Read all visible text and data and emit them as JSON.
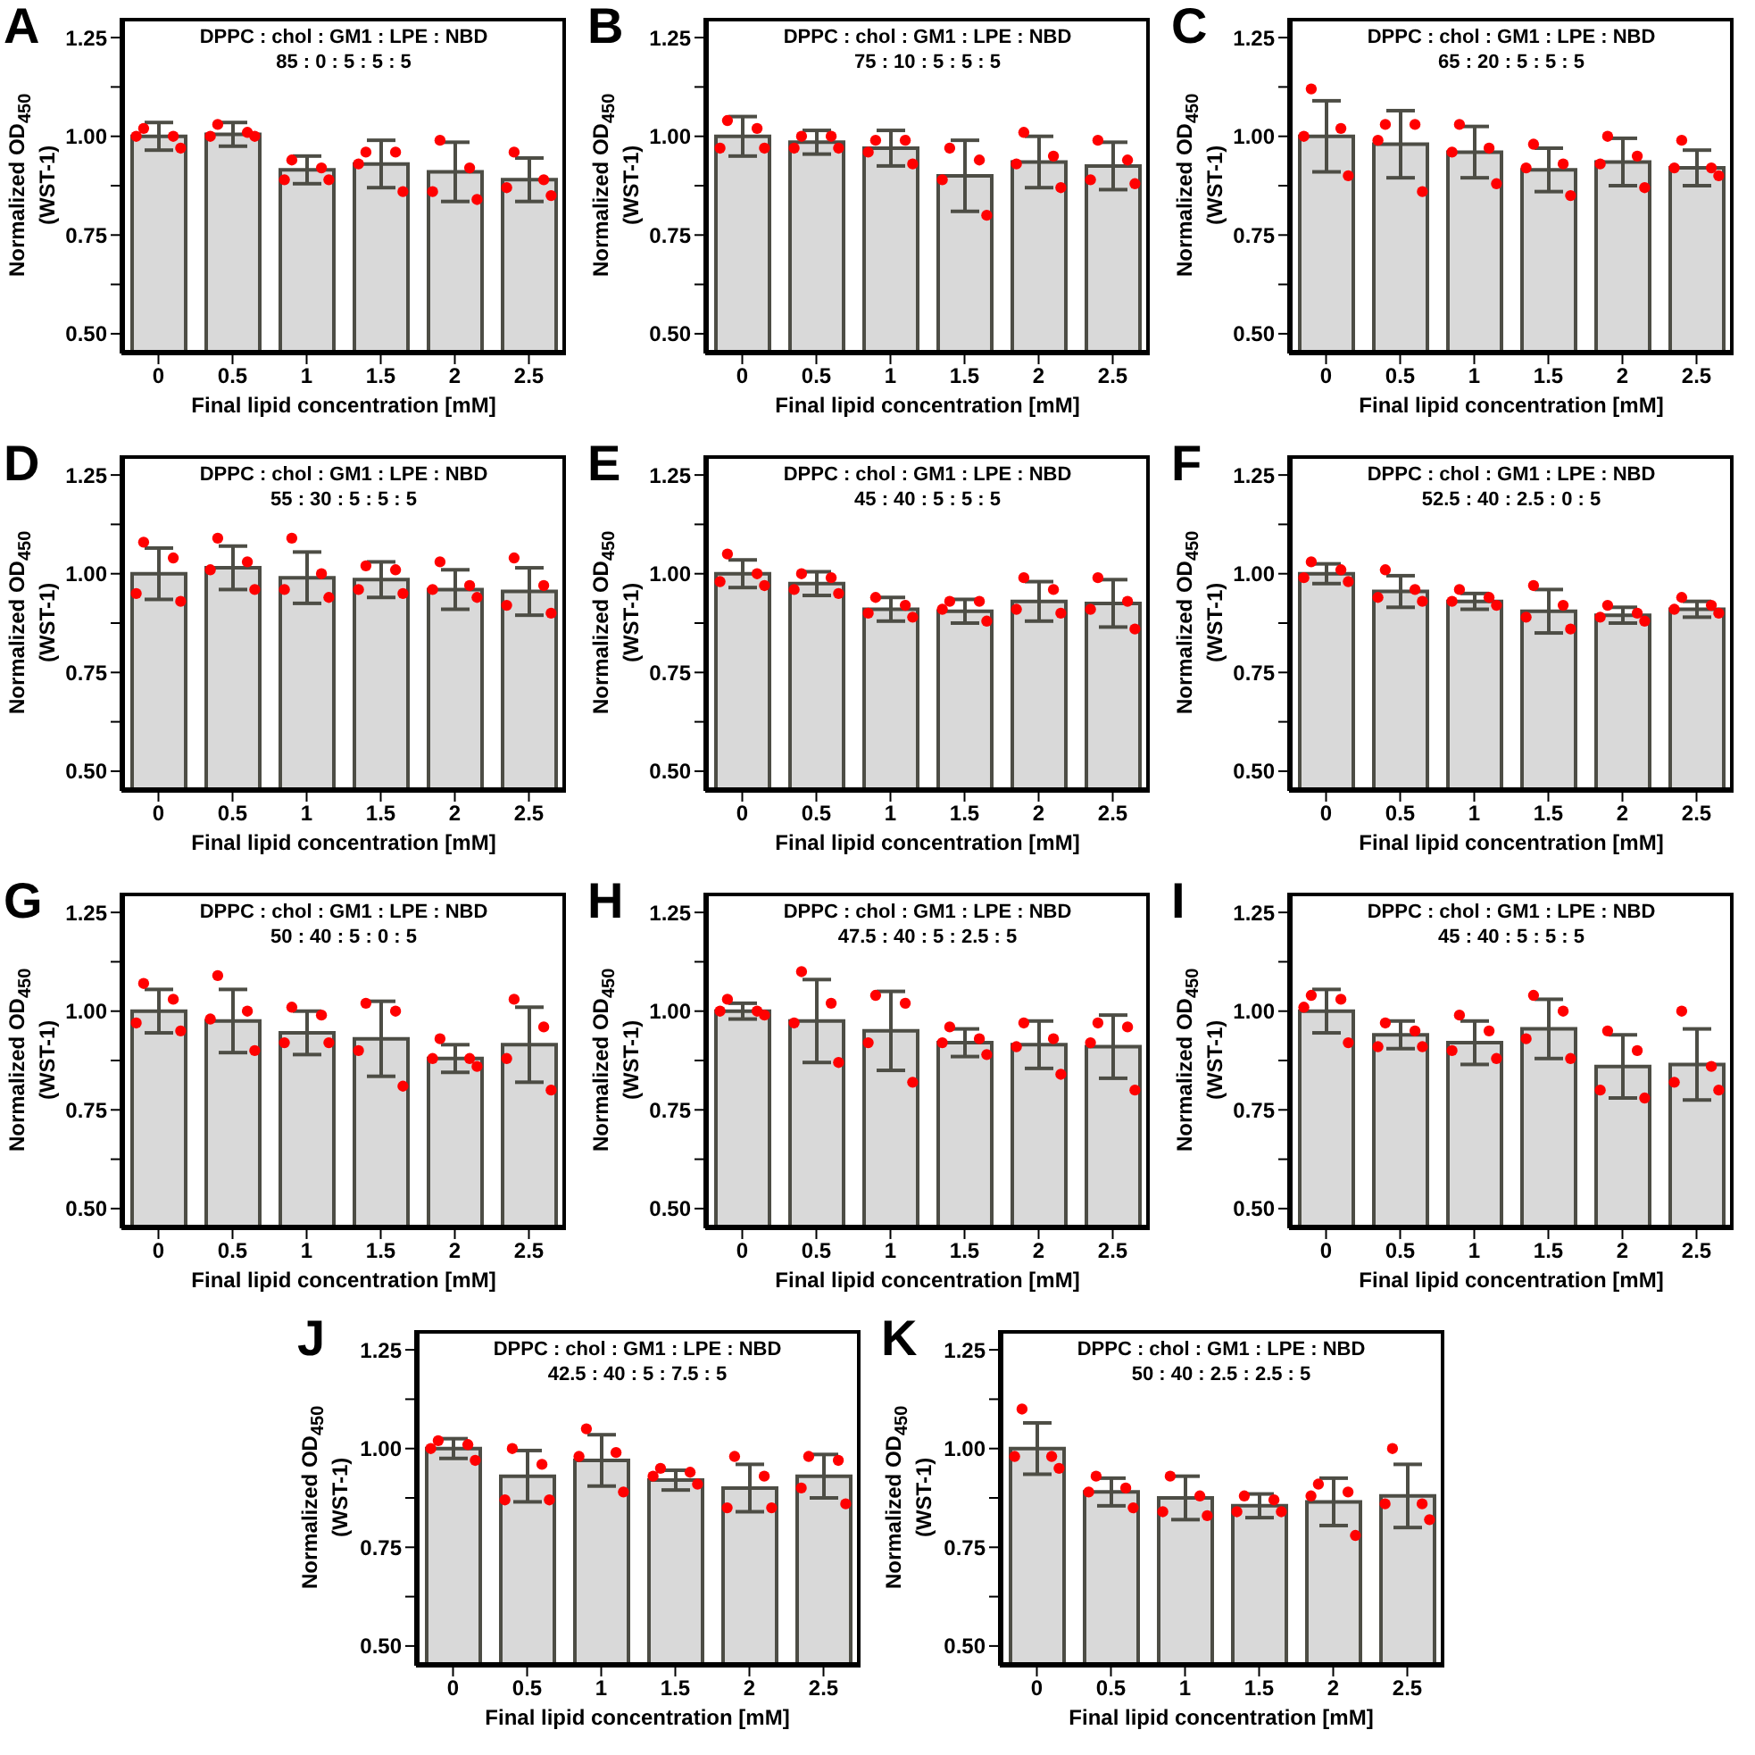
{
  "chart_data": [
    {
      "type": "bar",
      "annotations": [
        "A"
      ],
      "title": "DPPC : chol : GM1 : LPE : NBD",
      "subtitle": "85 : 0 : 5 : 5 : 5",
      "xlabel": "Final lipid concentration [mM]",
      "ylabel": "Normalized OD$_{450}$\n(WST-1)",
      "categories": [
        "0",
        "0.5",
        "1",
        "1.5",
        "2",
        "2.5"
      ],
      "ylim": [
        0.45,
        1.3
      ],
      "yticks": [
        {
          "value": 0.5,
          "label": "0.50"
        },
        {
          "value": 0.625,
          "label": null
        },
        {
          "value": 0.75,
          "label": "0.75"
        },
        {
          "value": 0.875,
          "label": null
        },
        {
          "value": 1,
          "label": "1.00"
        },
        {
          "value": 1.125,
          "label": null
        },
        {
          "value": 1.25,
          "label": "1.25"
        }
      ],
      "marker": "circle",
      "series": [
        {
          "type": "bar",
          "color": "#d9d9d9",
          "values": [
            1.0,
            1.005,
            0.915,
            0.93,
            0.91,
            0.89
          ],
          "errors": [
            0.035,
            0.03,
            0.035,
            0.06,
            0.075,
            0.055
          ]
        },
        {
          "type": "scatter",
          "color": "#ff0000",
          "x": [
            "0",
            "0",
            "0",
            "0",
            "0.5",
            "0.5",
            "0.5",
            "0.5",
            "1",
            "1",
            "1",
            "1",
            "1.5",
            "1.5",
            "1.5",
            "1.5",
            "2",
            "2",
            "2",
            "2",
            "2.5",
            "2.5",
            "2.5",
            "2.5"
          ],
          "values": [
            1.02,
            1.0,
            1.0,
            0.97,
            1.03,
            1.01,
            1.0,
            1.0,
            0.94,
            0.92,
            0.89,
            0.89,
            0.96,
            0.96,
            0.93,
            0.86,
            0.99,
            0.92,
            0.86,
            0.84,
            0.96,
            0.89,
            0.87,
            0.85
          ]
        }
      ]
    },
    {
      "type": "bar",
      "annotations": [
        "B"
      ],
      "title": "DPPC : chol : GM1 : LPE : NBD",
      "subtitle": "75 : 10 : 5 : 5 : 5",
      "xlabel": "Final lipid concentration [mM]",
      "ylabel": "Normalized OD$_{450}$\n(WST-1)",
      "categories": [
        "0",
        "0.5",
        "1",
        "1.5",
        "2",
        "2.5"
      ],
      "ylim": [
        0.45,
        1.3
      ],
      "yticks": [
        {
          "value": 0.5,
          "label": "0.50"
        },
        {
          "value": 0.625,
          "label": null
        },
        {
          "value": 0.75,
          "label": "0.75"
        },
        {
          "value": 0.875,
          "label": null
        },
        {
          "value": 1,
          "label": "1.00"
        },
        {
          "value": 1.125,
          "label": null
        },
        {
          "value": 1.25,
          "label": "1.25"
        }
      ],
      "marker": "circle",
      "series": [
        {
          "type": "bar",
          "color": "#d9d9d9",
          "values": [
            1.0,
            0.985,
            0.97,
            0.9,
            0.935,
            0.925
          ],
          "errors": [
            0.05,
            0.03,
            0.045,
            0.09,
            0.065,
            0.06
          ]
        },
        {
          "type": "scatter",
          "color": "#ff0000",
          "x": [
            "0",
            "0",
            "0",
            "0",
            "0.5",
            "0.5",
            "0.5",
            "0.5",
            "1",
            "1",
            "1",
            "1",
            "1.5",
            "1.5",
            "1.5",
            "1.5",
            "2",
            "2",
            "2",
            "2",
            "2.5",
            "2.5",
            "2.5",
            "2.5"
          ],
          "values": [
            1.04,
            1.02,
            0.97,
            0.97,
            1.0,
            1.0,
            0.97,
            0.97,
            0.99,
            0.99,
            0.96,
            0.93,
            0.97,
            0.94,
            0.89,
            0.8,
            1.01,
            0.95,
            0.93,
            0.87,
            0.99,
            0.94,
            0.89,
            0.88
          ]
        }
      ]
    },
    {
      "type": "bar",
      "annotations": [
        "C"
      ],
      "title": "DPPC : chol : GM1 : LPE : NBD",
      "subtitle": "65 : 20 : 5 : 5 : 5",
      "xlabel": "Final lipid concentration [mM]",
      "ylabel": "Normalized OD$_{450}$\n(WST-1)",
      "categories": [
        "0",
        "0.5",
        "1",
        "1.5",
        "2",
        "2.5"
      ],
      "ylim": [
        0.45,
        1.3
      ],
      "yticks": [
        {
          "value": 0.5,
          "label": "0.50"
        },
        {
          "value": 0.625,
          "label": null
        },
        {
          "value": 0.75,
          "label": "0.75"
        },
        {
          "value": 0.875,
          "label": null
        },
        {
          "value": 1,
          "label": "1.00"
        },
        {
          "value": 1.125,
          "label": null
        },
        {
          "value": 1.25,
          "label": "1.25"
        }
      ],
      "marker": "circle",
      "series": [
        {
          "type": "bar",
          "color": "#d9d9d9",
          "values": [
            1.0,
            0.98,
            0.96,
            0.915,
            0.935,
            0.92
          ],
          "errors": [
            0.09,
            0.085,
            0.065,
            0.055,
            0.06,
            0.045
          ]
        },
        {
          "type": "scatter",
          "color": "#ff0000",
          "x": [
            "0",
            "0",
            "0",
            "0",
            "0.5",
            "0.5",
            "0.5",
            "0.5",
            "1",
            "1",
            "1",
            "1",
            "1.5",
            "1.5",
            "1.5",
            "1.5",
            "2",
            "2",
            "2",
            "2",
            "2.5",
            "2.5",
            "2.5",
            "2.5"
          ],
          "values": [
            1.12,
            1.02,
            1.0,
            0.9,
            1.03,
            1.03,
            0.99,
            0.86,
            1.03,
            0.97,
            0.96,
            0.88,
            0.98,
            0.93,
            0.92,
            0.85,
            1.0,
            0.95,
            0.93,
            0.87,
            0.99,
            0.92,
            0.92,
            0.9
          ]
        }
      ]
    },
    {
      "type": "bar",
      "annotations": [
        "D"
      ],
      "title": "DPPC : chol : GM1 : LPE : NBD",
      "subtitle": "55 : 30 : 5 : 5 : 5",
      "xlabel": "Final lipid concentration [mM]",
      "ylabel": "Normalized OD$_{450}$\n(WST-1)",
      "categories": [
        "0",
        "0.5",
        "1",
        "1.5",
        "2",
        "2.5"
      ],
      "ylim": [
        0.45,
        1.3
      ],
      "yticks": [
        {
          "value": 0.5,
          "label": "0.50"
        },
        {
          "value": 0.625,
          "label": null
        },
        {
          "value": 0.75,
          "label": "0.75"
        },
        {
          "value": 0.875,
          "label": null
        },
        {
          "value": 1,
          "label": "1.00"
        },
        {
          "value": 1.125,
          "label": null
        },
        {
          "value": 1.25,
          "label": "1.25"
        }
      ],
      "marker": "circle",
      "series": [
        {
          "type": "bar",
          "color": "#d9d9d9",
          "values": [
            1.0,
            1.015,
            0.99,
            0.985,
            0.96,
            0.955
          ],
          "errors": [
            0.065,
            0.055,
            0.065,
            0.045,
            0.05,
            0.06
          ]
        },
        {
          "type": "scatter",
          "color": "#ff0000",
          "x": [
            "0",
            "0",
            "0",
            "0",
            "0.5",
            "0.5",
            "0.5",
            "0.5",
            "1",
            "1",
            "1",
            "1",
            "1.5",
            "1.5",
            "1.5",
            "1.5",
            "2",
            "2",
            "2",
            "2",
            "2.5",
            "2.5",
            "2.5",
            "2.5"
          ],
          "values": [
            1.08,
            1.04,
            0.95,
            0.93,
            1.09,
            1.03,
            1.01,
            0.96,
            1.09,
            1.0,
            0.96,
            0.94,
            1.02,
            1.01,
            0.96,
            0.95,
            1.03,
            0.97,
            0.96,
            0.94,
            1.04,
            0.97,
            0.92,
            0.9
          ]
        }
      ]
    },
    {
      "type": "bar",
      "annotations": [
        "E"
      ],
      "title": "DPPC : chol : GM1 : LPE : NBD",
      "subtitle": "45 : 40 : 5 : 5 : 5",
      "xlabel": "Final lipid concentration [mM]",
      "ylabel": "Normalized OD$_{450}$\n(WST-1)",
      "categories": [
        "0",
        "0.5",
        "1",
        "1.5",
        "2",
        "2.5"
      ],
      "ylim": [
        0.45,
        1.3
      ],
      "yticks": [
        {
          "value": 0.5,
          "label": "0.50"
        },
        {
          "value": 0.625,
          "label": null
        },
        {
          "value": 0.75,
          "label": "0.75"
        },
        {
          "value": 0.875,
          "label": null
        },
        {
          "value": 1,
          "label": "1.00"
        },
        {
          "value": 1.125,
          "label": null
        },
        {
          "value": 1.25,
          "label": "1.25"
        }
      ],
      "marker": "circle",
      "series": [
        {
          "type": "bar",
          "color": "#d9d9d9",
          "values": [
            1.0,
            0.975,
            0.91,
            0.905,
            0.93,
            0.925
          ],
          "errors": [
            0.035,
            0.03,
            0.03,
            0.03,
            0.05,
            0.06
          ]
        },
        {
          "type": "scatter",
          "color": "#ff0000",
          "x": [
            "0",
            "0",
            "0",
            "0",
            "0.5",
            "0.5",
            "0.5",
            "0.5",
            "1",
            "1",
            "1",
            "1",
            "1.5",
            "1.5",
            "1.5",
            "1.5",
            "2",
            "2",
            "2",
            "2",
            "2.5",
            "2.5",
            "2.5",
            "2.5"
          ],
          "values": [
            1.05,
            1.0,
            0.98,
            0.97,
            1.0,
            0.99,
            0.96,
            0.95,
            0.94,
            0.92,
            0.9,
            0.89,
            0.93,
            0.93,
            0.91,
            0.88,
            0.99,
            0.96,
            0.91,
            0.9,
            0.99,
            0.93,
            0.91,
            0.86
          ]
        }
      ]
    },
    {
      "type": "bar",
      "annotations": [
        "F"
      ],
      "title": "DPPC : chol : GM1 : LPE : NBD",
      "subtitle": "52.5 : 40 : 2.5 : 0 : 5",
      "xlabel": "Final lipid concentration [mM]",
      "ylabel": "Normalized OD$_{450}$\n(WST-1)",
      "categories": [
        "0",
        "0.5",
        "1",
        "1.5",
        "2",
        "2.5"
      ],
      "ylim": [
        0.45,
        1.3
      ],
      "yticks": [
        {
          "value": 0.5,
          "label": "0.50"
        },
        {
          "value": 0.625,
          "label": null
        },
        {
          "value": 0.75,
          "label": "0.75"
        },
        {
          "value": 0.875,
          "label": null
        },
        {
          "value": 1,
          "label": "1.00"
        },
        {
          "value": 1.125,
          "label": null
        },
        {
          "value": 1.25,
          "label": "1.25"
        }
      ],
      "marker": "circle",
      "series": [
        {
          "type": "bar",
          "color": "#d9d9d9",
          "values": [
            1.0,
            0.955,
            0.93,
            0.905,
            0.895,
            0.91
          ],
          "errors": [
            0.025,
            0.04,
            0.02,
            0.055,
            0.02,
            0.02
          ]
        },
        {
          "type": "scatter",
          "color": "#ff0000",
          "x": [
            "0",
            "0",
            "0",
            "0",
            "0.5",
            "0.5",
            "0.5",
            "0.5",
            "1",
            "1",
            "1",
            "1",
            "1.5",
            "1.5",
            "1.5",
            "1.5",
            "2",
            "2",
            "2",
            "2",
            "2.5",
            "2.5",
            "2.5",
            "2.5"
          ],
          "values": [
            1.03,
            1.01,
            0.99,
            0.98,
            1.01,
            0.96,
            0.94,
            0.93,
            0.96,
            0.94,
            0.93,
            0.92,
            0.97,
            0.92,
            0.89,
            0.86,
            0.92,
            0.9,
            0.89,
            0.88,
            0.94,
            0.92,
            0.91,
            0.9
          ]
        }
      ]
    },
    {
      "type": "bar",
      "annotations": [
        "G"
      ],
      "title": "DPPC : chol : GM1 : LPE : NBD",
      "subtitle": "50 : 40 : 5 : 0 : 5",
      "xlabel": "Final lipid concentration [mM]",
      "ylabel": "Normalized OD$_{450}$\n(WST-1)",
      "categories": [
        "0",
        "0.5",
        "1",
        "1.5",
        "2",
        "2.5"
      ],
      "ylim": [
        0.45,
        1.3
      ],
      "yticks": [
        {
          "value": 0.5,
          "label": "0.50"
        },
        {
          "value": 0.625,
          "label": null
        },
        {
          "value": 0.75,
          "label": "0.75"
        },
        {
          "value": 0.875,
          "label": null
        },
        {
          "value": 1,
          "label": "1.00"
        },
        {
          "value": 1.125,
          "label": null
        },
        {
          "value": 1.25,
          "label": "1.25"
        }
      ],
      "marker": "circle",
      "series": [
        {
          "type": "bar",
          "color": "#d9d9d9",
          "values": [
            1.0,
            0.975,
            0.945,
            0.93,
            0.88,
            0.915
          ],
          "errors": [
            0.055,
            0.08,
            0.055,
            0.095,
            0.035,
            0.095
          ]
        },
        {
          "type": "scatter",
          "color": "#ff0000",
          "x": [
            "0",
            "0",
            "0",
            "0",
            "0.5",
            "0.5",
            "0.5",
            "0.5",
            "1",
            "1",
            "1",
            "1",
            "1.5",
            "1.5",
            "1.5",
            "1.5",
            "2",
            "2",
            "2",
            "2",
            "2.5",
            "2.5",
            "2.5",
            "2.5"
          ],
          "values": [
            1.07,
            1.03,
            0.97,
            0.95,
            1.09,
            1.0,
            0.98,
            0.9,
            1.01,
            0.99,
            0.92,
            0.92,
            1.02,
            1.0,
            0.9,
            0.81,
            0.93,
            0.88,
            0.88,
            0.86,
            1.03,
            0.96,
            0.88,
            0.8
          ]
        }
      ]
    },
    {
      "type": "bar",
      "annotations": [
        "H"
      ],
      "title": "DPPC : chol : GM1 : LPE : NBD",
      "subtitle": "47.5 : 40 : 5 : 2.5 : 5",
      "xlabel": "Final lipid concentration [mM]",
      "ylabel": "Normalized OD$_{450}$\n(WST-1)",
      "categories": [
        "0",
        "0.5",
        "1",
        "1.5",
        "2",
        "2.5"
      ],
      "ylim": [
        0.45,
        1.3
      ],
      "yticks": [
        {
          "value": 0.5,
          "label": "0.50"
        },
        {
          "value": 0.625,
          "label": null
        },
        {
          "value": 0.75,
          "label": "0.75"
        },
        {
          "value": 0.875,
          "label": null
        },
        {
          "value": 1,
          "label": "1.00"
        },
        {
          "value": 1.125,
          "label": null
        },
        {
          "value": 1.25,
          "label": "1.25"
        }
      ],
      "marker": "circle",
      "series": [
        {
          "type": "bar",
          "color": "#d9d9d9",
          "values": [
            1.0,
            0.975,
            0.95,
            0.92,
            0.915,
            0.91
          ],
          "errors": [
            0.02,
            0.105,
            0.1,
            0.035,
            0.06,
            0.08
          ]
        },
        {
          "type": "scatter",
          "color": "#ff0000",
          "x": [
            "0",
            "0",
            "0",
            "0",
            "0.5",
            "0.5",
            "0.5",
            "0.5",
            "1",
            "1",
            "1",
            "1",
            "1.5",
            "1.5",
            "1.5",
            "1.5",
            "2",
            "2",
            "2",
            "2",
            "2.5",
            "2.5",
            "2.5",
            "2.5"
          ],
          "values": [
            1.03,
            1.0,
            1.0,
            0.99,
            1.1,
            1.02,
            0.97,
            0.87,
            1.04,
            1.02,
            0.92,
            0.82,
            0.96,
            0.93,
            0.92,
            0.89,
            0.97,
            0.93,
            0.91,
            0.84,
            0.97,
            0.96,
            0.92,
            0.8
          ]
        }
      ]
    },
    {
      "type": "bar",
      "annotations": [
        "I"
      ],
      "title": "DPPC : chol : GM1 : LPE : NBD",
      "subtitle": "45 : 40 : 5 : 5 : 5",
      "xlabel": "Final lipid concentration [mM]",
      "ylabel": "Normalized OD$_{450}$\n(WST-1)",
      "categories": [
        "0",
        "0.5",
        "1",
        "1.5",
        "2",
        "2.5"
      ],
      "ylim": [
        0.45,
        1.3
      ],
      "yticks": [
        {
          "value": 0.5,
          "label": "0.50"
        },
        {
          "value": 0.625,
          "label": null
        },
        {
          "value": 0.75,
          "label": "0.75"
        },
        {
          "value": 0.875,
          "label": null
        },
        {
          "value": 1,
          "label": "1.00"
        },
        {
          "value": 1.125,
          "label": null
        },
        {
          "value": 1.25,
          "label": "1.25"
        }
      ],
      "marker": "circle",
      "series": [
        {
          "type": "bar",
          "color": "#d9d9d9",
          "values": [
            1.0,
            0.94,
            0.92,
            0.955,
            0.86,
            0.865
          ],
          "errors": [
            0.055,
            0.035,
            0.055,
            0.075,
            0.08,
            0.09
          ]
        },
        {
          "type": "scatter",
          "color": "#ff0000",
          "x": [
            "0",
            "0",
            "0",
            "0",
            "0.5",
            "0.5",
            "0.5",
            "0.5",
            "1",
            "1",
            "1",
            "1",
            "1.5",
            "1.5",
            "1.5",
            "1.5",
            "2",
            "2",
            "2",
            "2",
            "2.5",
            "2.5",
            "2.5",
            "2.5"
          ],
          "values": [
            1.04,
            1.03,
            1.01,
            0.92,
            0.97,
            0.95,
            0.91,
            0.91,
            0.99,
            0.95,
            0.9,
            0.88,
            1.04,
            1.0,
            0.93,
            0.88,
            0.95,
            0.9,
            0.8,
            0.78,
            1.0,
            0.86,
            0.82,
            0.8
          ]
        }
      ]
    },
    {
      "type": "bar",
      "annotations": [
        "J"
      ],
      "title": "DPPC : chol : GM1 : LPE : NBD",
      "subtitle": "42.5 : 40 : 5 : 7.5 : 5",
      "xlabel": "Final lipid concentration [mM]",
      "ylabel": "Normalized OD$_{450}$\n(WST-1)",
      "categories": [
        "0",
        "0.5",
        "1",
        "1.5",
        "2",
        "2.5"
      ],
      "ylim": [
        0.45,
        1.3
      ],
      "yticks": [
        {
          "value": 0.5,
          "label": "0.50"
        },
        {
          "value": 0.625,
          "label": null
        },
        {
          "value": 0.75,
          "label": "0.75"
        },
        {
          "value": 0.875,
          "label": null
        },
        {
          "value": 1,
          "label": "1.00"
        },
        {
          "value": 1.125,
          "label": null
        },
        {
          "value": 1.25,
          "label": "1.25"
        }
      ],
      "marker": "circle",
      "series": [
        {
          "type": "bar",
          "color": "#d9d9d9",
          "values": [
            1.0,
            0.93,
            0.97,
            0.92,
            0.9,
            0.93
          ],
          "errors": [
            0.025,
            0.065,
            0.065,
            0.025,
            0.06,
            0.055
          ]
        },
        {
          "type": "scatter",
          "color": "#ff0000",
          "x": [
            "0",
            "0",
            "0",
            "0",
            "0.5",
            "0.5",
            "0.5",
            "0.5",
            "1",
            "1",
            "1",
            "1",
            "1.5",
            "1.5",
            "1.5",
            "1.5",
            "2",
            "2",
            "2",
            "2",
            "2.5",
            "2.5",
            "2.5",
            "2.5"
          ],
          "values": [
            1.02,
            1.01,
            1.0,
            0.97,
            1.0,
            0.96,
            0.87,
            0.87,
            1.05,
            0.99,
            0.98,
            0.89,
            0.95,
            0.94,
            0.93,
            0.91,
            0.98,
            0.93,
            0.85,
            0.85,
            0.98,
            0.97,
            0.9,
            0.86
          ]
        }
      ]
    },
    {
      "type": "bar",
      "annotations": [
        "K"
      ],
      "title": "DPPC : chol : GM1 : LPE : NBD",
      "subtitle": "50 : 40 : 2.5 : 2.5 : 5",
      "xlabel": "Final lipid concentration [mM]",
      "ylabel": "Normalized OD$_{450}$\n(WST-1)",
      "categories": [
        "0",
        "0.5",
        "1",
        "1.5",
        "2",
        "2.5"
      ],
      "ylim": [
        0.45,
        1.3
      ],
      "yticks": [
        {
          "value": 0.5,
          "label": "0.50"
        },
        {
          "value": 0.625,
          "label": null
        },
        {
          "value": 0.75,
          "label": "0.75"
        },
        {
          "value": 0.875,
          "label": null
        },
        {
          "value": 1,
          "label": "1.00"
        },
        {
          "value": 1.125,
          "label": null
        },
        {
          "value": 1.25,
          "label": "1.25"
        }
      ],
      "marker": "circle",
      "series": [
        {
          "type": "bar",
          "color": "#d9d9d9",
          "values": [
            1.0,
            0.89,
            0.875,
            0.855,
            0.865,
            0.88
          ],
          "errors": [
            0.065,
            0.035,
            0.055,
            0.03,
            0.06,
            0.08
          ]
        },
        {
          "type": "scatter",
          "color": "#ff0000",
          "x": [
            "0",
            "0",
            "0",
            "0",
            "0.5",
            "0.5",
            "0.5",
            "0.5",
            "1",
            "1",
            "1",
            "1",
            "1.5",
            "1.5",
            "1.5",
            "1.5",
            "2",
            "2",
            "2",
            "2",
            "2.5",
            "2.5",
            "2.5",
            "2.5"
          ],
          "values": [
            1.1,
            0.98,
            0.98,
            0.95,
            0.93,
            0.9,
            0.89,
            0.85,
            0.93,
            0.88,
            0.84,
            0.83,
            0.88,
            0.87,
            0.84,
            0.84,
            0.91,
            0.89,
            0.88,
            0.78,
            1.0,
            0.86,
            0.86,
            0.82
          ]
        }
      ]
    }
  ]
}
